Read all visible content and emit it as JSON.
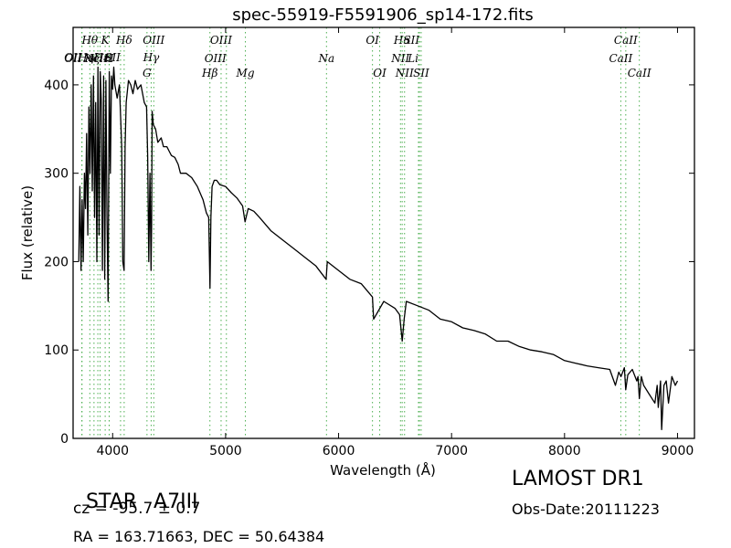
{
  "chart_data": {
    "type": "line",
    "title": "spec-55919-F5591906_sp14-172.fits",
    "xlabel": "Wavelength (Å)",
    "ylabel": "Flux (relative)",
    "xlim": [
      3650,
      9150
    ],
    "ylim": [
      0,
      465
    ],
    "xticks": [
      4000,
      5000,
      6000,
      7000,
      8000,
      9000
    ],
    "yticks": [
      0,
      100,
      200,
      300,
      400
    ],
    "grid": false,
    "series": [
      {
        "color": "#000000",
        "x": [
          3700,
          3710,
          3720,
          3730,
          3740,
          3750,
          3760,
          3770,
          3780,
          3790,
          3800,
          3810,
          3820,
          3830,
          3840,
          3850,
          3860,
          3870,
          3880,
          3890,
          3900,
          3910,
          3920,
          3930,
          3940,
          3950,
          3960,
          3970,
          3980,
          3990,
          4000,
          4010,
          4020,
          4040,
          4060,
          4080,
          4090,
          4101,
          4110,
          4120,
          4140,
          4160,
          4180,
          4200,
          4220,
          4250,
          4280,
          4300,
          4310,
          4320,
          4330,
          4340,
          4345,
          4350,
          4360,
          4380,
          4400,
          4430,
          4450,
          4480,
          4500,
          4520,
          4550,
          4580,
          4600,
          4650,
          4700,
          4750,
          4800,
          4830,
          4850,
          4862,
          4870,
          4880,
          4900,
          4920,
          4950,
          5000,
          5050,
          5100,
          5150,
          5172,
          5200,
          5250,
          5300,
          5400,
          5500,
          5600,
          5700,
          5800,
          5890,
          5900,
          6000,
          6100,
          6200,
          6300,
          6310,
          6400,
          6500,
          6540,
          6563,
          6580,
          6600,
          6700,
          6800,
          6900,
          7000,
          7100,
          7200,
          7300,
          7400,
          7500,
          7600,
          7700,
          7800,
          7900,
          8000,
          8100,
          8200,
          8300,
          8400,
          8450,
          8480,
          8500,
          8530,
          8542,
          8560,
          8600,
          8640,
          8650,
          8662,
          8680,
          8700,
          8750,
          8800,
          8820,
          8830,
          8850,
          8860,
          8880,
          8900,
          8920,
          8950,
          8980,
          9000
        ],
        "y": [
          200,
          285,
          190,
          270,
          200,
          300,
          260,
          345,
          230,
          375,
          300,
          400,
          280,
          410,
          250,
          380,
          200,
          420,
          230,
          415,
          380,
          190,
          410,
          180,
          405,
          250,
          155,
          415,
          300,
          410,
          395,
          420,
          400,
          385,
          400,
          330,
          200,
          190,
          330,
          380,
          405,
          400,
          390,
          405,
          395,
          400,
          380,
          375,
          320,
          200,
          300,
          190,
          240,
          370,
          355,
          350,
          335,
          340,
          330,
          330,
          325,
          320,
          318,
          310,
          300,
          300,
          295,
          285,
          270,
          255,
          250,
          170,
          250,
          285,
          292,
          292,
          287,
          285,
          278,
          272,
          263,
          245,
          260,
          257,
          250,
          235,
          225,
          215,
          205,
          195,
          180,
          200,
          190,
          180,
          175,
          160,
          135,
          155,
          147,
          140,
          110,
          135,
          155,
          150,
          145,
          135,
          132,
          125,
          122,
          118,
          110,
          110,
          104,
          100,
          98,
          95,
          88,
          85,
          82,
          80,
          78,
          60,
          75,
          70,
          80,
          55,
          72,
          78,
          65,
          70,
          45,
          70,
          60,
          50,
          40,
          60,
          35,
          65,
          10,
          60,
          65,
          40,
          70,
          60,
          65
        ]
      }
    ],
    "lines": [
      {
        "label": "Hθ",
        "x": 3798,
        "label_row": 1,
        "align": "center"
      },
      {
        "label": "OII",
        "x": 3727,
        "label_row": 2,
        "align": "right"
      },
      {
        "label": "OII",
        "x": 3729,
        "label_row": 3,
        "align": "right"
      },
      {
        "label": "Hη",
        "x": 3835,
        "label_row": 2,
        "align": "right"
      },
      {
        "label": "Hζ",
        "x": 3889,
        "label_row": 3,
        "align": "right"
      },
      {
        "label": "NeIII",
        "x": 3869,
        "label_row": 3,
        "align": "center"
      },
      {
        "label": "K",
        "x": 3934,
        "label_row": 1,
        "align": "center"
      },
      {
        "label": "Hε",
        "x": 3970,
        "label_row": 2,
        "align": "right"
      },
      {
        "label": "H",
        "x": 3969,
        "label_row": 3,
        "align": "center"
      },
      {
        "label": "SII",
        "x": 4070,
        "label_row": 2,
        "align": "right"
      },
      {
        "label": "Hδ",
        "x": 4102,
        "label_row": 1,
        "align": "center"
      },
      {
        "label": "OIII",
        "x": 4364,
        "label_row": 1,
        "align": "center"
      },
      {
        "label": "Hγ",
        "x": 4341,
        "label_row": 2,
        "align": "center"
      },
      {
        "label": "G",
        "x": 4304,
        "label_row": 4,
        "align": "center"
      },
      {
        "label": "OIII",
        "x": 4960,
        "label_row": 1,
        "align": "center"
      },
      {
        "label": "OIII",
        "x": 5007,
        "label_row": 3,
        "align": "right"
      },
      {
        "label": "Hβ",
        "x": 4861,
        "label_row": 4,
        "align": "center"
      },
      {
        "label": "Mg",
        "x": 5175,
        "label_row": 4,
        "align": "center"
      },
      {
        "label": "Na",
        "x": 5893,
        "label_row": 3,
        "align": "center"
      },
      {
        "label": "OI",
        "x": 6300,
        "label_row": 1,
        "align": "center"
      },
      {
        "label": "OI",
        "x": 6364,
        "label_row": 4,
        "align": "center"
      },
      {
        "label": "Hα",
        "x": 6563,
        "label_row": 1,
        "align": "center"
      },
      {
        "label": "SII",
        "x": 6716,
        "label_row": 1,
        "align": "right"
      },
      {
        "label": "NII",
        "x": 6548,
        "label_row": 3,
        "align": "center"
      },
      {
        "label": "Li",
        "x": 6707,
        "label_row": 3,
        "align": "right"
      },
      {
        "label": "NII",
        "x": 6584,
        "label_row": 4,
        "align": "center"
      },
      {
        "label": "SII",
        "x": 6731,
        "label_row": 4,
        "align": "center"
      },
      {
        "label": "CaII",
        "x": 8542,
        "label_row": 1,
        "align": "center"
      },
      {
        "label": "CaII",
        "x": 8498,
        "label_row": 3,
        "align": "center"
      },
      {
        "label": "CaII",
        "x": 8662,
        "label_row": 4,
        "align": "center"
      }
    ],
    "line_color": "#4caf50"
  },
  "footer": {
    "class_label": "STAR",
    "subclass": "A7III",
    "survey": "LAMOST DR1",
    "redshift": "cz = -95.7 ± 0.7",
    "obs_date": "Obs-Date:20111223",
    "coords": "RA = 163.71663, DEC = 50.64384"
  }
}
